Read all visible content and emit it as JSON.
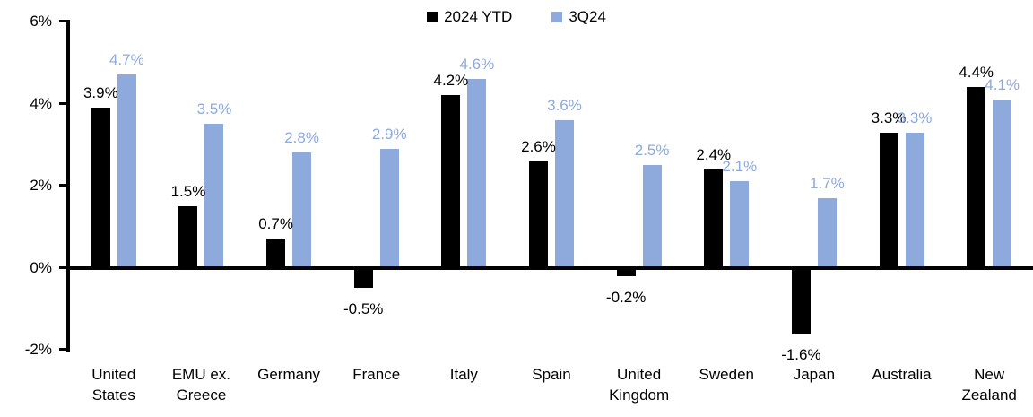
{
  "chart_data": {
    "type": "bar",
    "title": "",
    "categories": [
      "United\nStates",
      "EMU ex.\nGreece",
      "Germany",
      "France",
      "Italy",
      "Spain",
      "United\nKingdom",
      "Sweden",
      "Japan",
      "Australia",
      "New\nZealand"
    ],
    "series": [
      {
        "name": "2024 YTD",
        "color": "#000000",
        "label_color": "#000000",
        "values": [
          3.9,
          1.5,
          0.7,
          -0.5,
          4.2,
          2.6,
          -0.2,
          2.4,
          -1.6,
          3.3,
          4.4
        ]
      },
      {
        "name": "3Q24",
        "color": "#8EA9DB",
        "label_color": "#8EA9DB",
        "values": [
          4.7,
          3.5,
          2.8,
          2.9,
          4.6,
          3.6,
          2.5,
          2.1,
          1.7,
          3.3,
          4.1
        ]
      }
    ],
    "value_suffix": "%",
    "ylim": [
      -2,
      6
    ],
    "yticks": [
      {
        "value": 6,
        "label": "6%"
      },
      {
        "value": 4,
        "label": "4%"
      },
      {
        "value": 2,
        "label": "2%"
      },
      {
        "value": 0,
        "label": "0%"
      },
      {
        "value": -2,
        "label": "-2%"
      }
    ],
    "grid": false,
    "legend_position": "top-center",
    "data_labels": "outside-end"
  }
}
